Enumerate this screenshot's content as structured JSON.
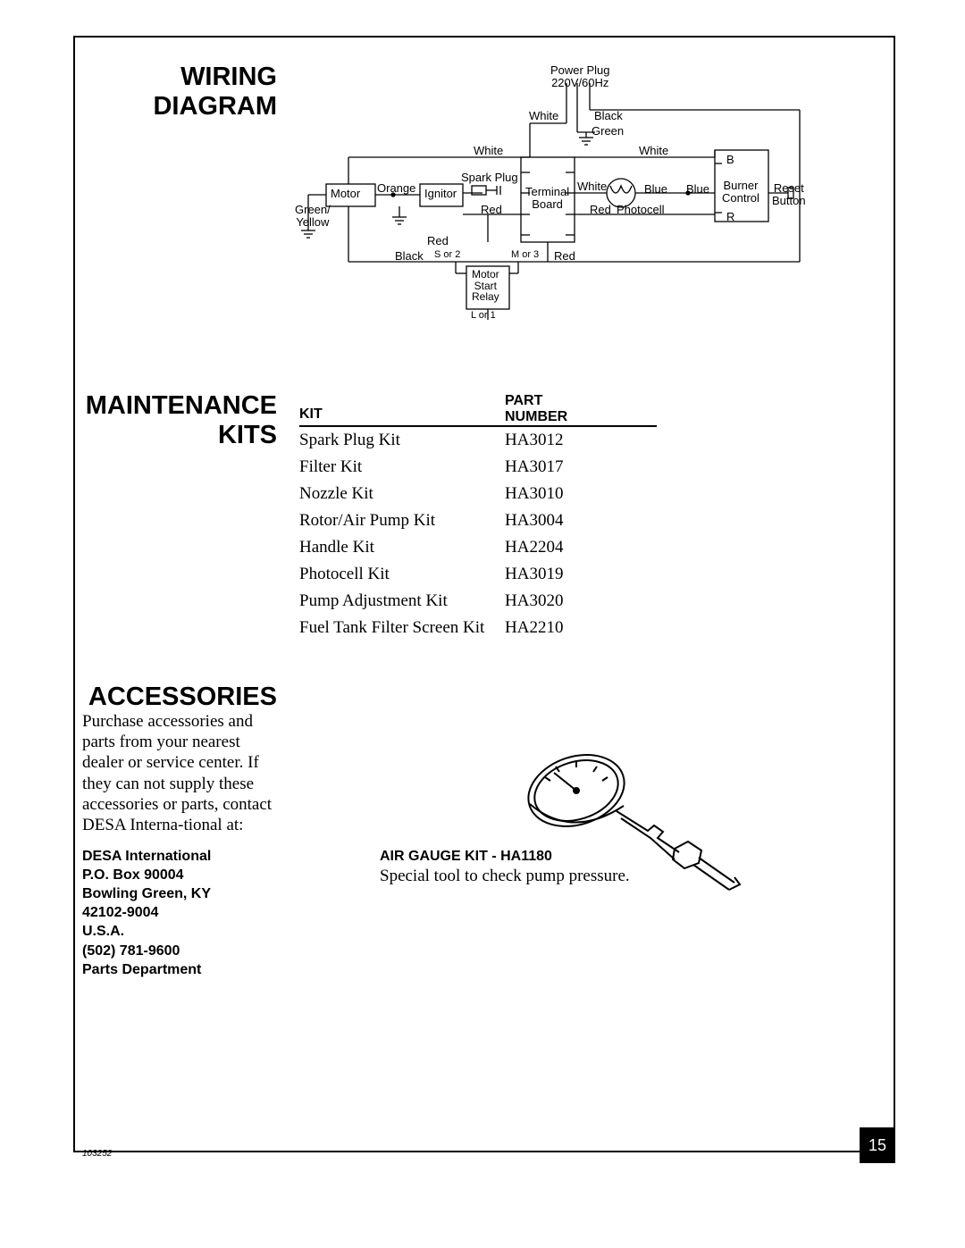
{
  "sections": {
    "wiring_title_l1": "WIRING",
    "wiring_title_l2": "DIAGRAM",
    "maint_title_l1": "MAINTENANCE",
    "maint_title_l2": "KITS",
    "access_title": "ACCESSORIES"
  },
  "diagram": {
    "power_plug_l1": "Power Plug",
    "power_plug_l2": "220V/60Hz",
    "white": "White",
    "black": "Black",
    "green": "Green",
    "orange": "Orange",
    "red": "Red",
    "blue": "Blue",
    "green_yellow_l1": "Green/",
    "green_yellow_l2": "Yellow",
    "motor": "Motor",
    "ignitor": "Ignitor",
    "spark_plug": "Spark Plug",
    "terminal_l1": "Terminal",
    "terminal_l2": "Board",
    "photocell": "Photocell",
    "burner_l1": "Burner",
    "burner_l2": "Control",
    "reset_l1": "Reset",
    "reset_l2": "Button",
    "b": "B",
    "r": "R",
    "motor_relay_l1": "Motor",
    "motor_relay_l2": "Start",
    "motor_relay_l3": "Relay",
    "s2": "S or 2",
    "m3": "M or 3",
    "l1": "L or 1"
  },
  "kits": {
    "hdr_kit": "KIT",
    "hdr_part_l1": "PART",
    "hdr_part_l2": "NUMBER",
    "rows": [
      {
        "name": "Spark Plug Kit",
        "num": "HA3012"
      },
      {
        "name": "Filter Kit",
        "num": "HA3017"
      },
      {
        "name": "Nozzle Kit",
        "num": "HA3010"
      },
      {
        "name": "Rotor/Air Pump Kit",
        "num": "HA3004"
      },
      {
        "name": "Handle Kit",
        "num": "HA2204"
      },
      {
        "name": "Photocell Kit",
        "num": "HA3019"
      },
      {
        "name": "Pump Adjustment Kit",
        "num": "HA3020"
      },
      {
        "name": "Fuel Tank Filter Screen Kit",
        "num": "HA2210"
      }
    ]
  },
  "accessories": {
    "body": "Purchase accessories and parts from your nearest dealer or service center. If they can not supply these accessories or parts, contact DESA Interna-tional at:",
    "addr_l1": "DESA International",
    "addr_l2": "P.O. Box 90004",
    "addr_l3": "Bowling Green, KY",
    "addr_l4": "42102-9004",
    "addr_l5": "U.S.A.",
    "addr_l6": "(502) 781-9600",
    "addr_l7": "Parts Department",
    "gauge_title": "AIR GAUGE KIT - HA1180",
    "gauge_desc": "Special tool to check pump pressure."
  },
  "footer": {
    "page": "15",
    "docid": "103252"
  },
  "style": {
    "line_color": "#000000",
    "line_width": 1
  }
}
